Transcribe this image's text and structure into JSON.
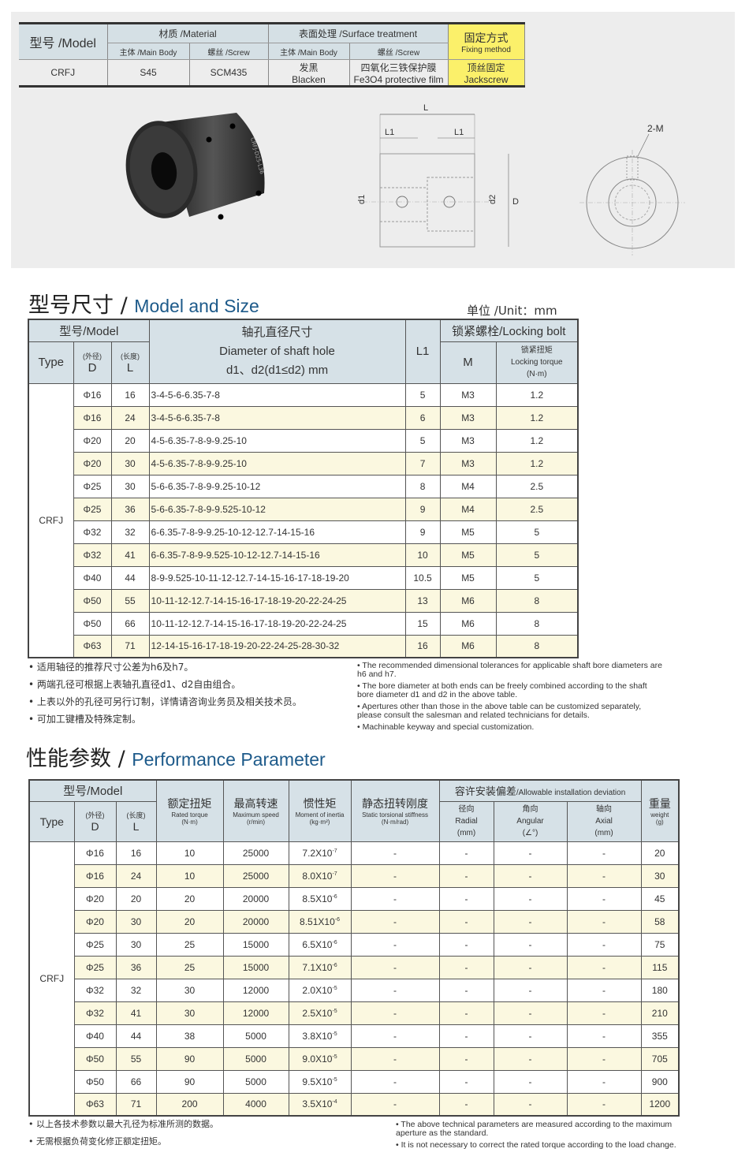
{
  "spec": {
    "model_h": "型号 /Model",
    "material_h": "材质 /Material",
    "surface_h": "表面处理 /Surface treatment",
    "fixing_h": "固定方式",
    "fixing_en": "Fixing method",
    "main_body": "主体 /Main Body",
    "screw": "螺丝 /Screw",
    "model": "CRFJ",
    "mat_body": "S45",
    "mat_screw": "SCM435",
    "surf_body_cn": "发黑",
    "surf_body_en": "Blacken",
    "surf_screw_cn": "四氧化三铁保护膜",
    "surf_screw_en": "Fe3O4 protective film",
    "fix_cn": "顶丝固定",
    "fix_en": "Jackscrew"
  },
  "drawing": {
    "L": "L",
    "L1a": "L1",
    "L1b": "L1",
    "d1": "d1",
    "d2": "d2",
    "D": "D",
    "M": "2-M",
    "engraving": "CRFJ-D25-L36"
  },
  "size": {
    "title_cn": "型号尺寸 /",
    "title_en": "Model and Size",
    "unit": "单位 /Unit：mm",
    "h_model": "型号/Model",
    "h_type": "Type",
    "h_d_cn": "(外径)",
    "h_d": "D",
    "h_l_cn": "(长度)",
    "h_l": "L",
    "h_shaft_cn": "轴孔直径尺寸",
    "h_shaft_en": "Diameter of shaft hole",
    "h_shaft_sub": "d1、d2(d1≤d2) mm",
    "h_l1": "L1",
    "h_bolt": "锁紧螺栓/Locking bolt",
    "h_m": "M",
    "h_torque_cn": "锁紧扭矩",
    "h_torque_en": "Locking torque",
    "h_torque_unit": "(N·m)",
    "type": "CRFJ",
    "rows": [
      [
        "Φ16",
        "16",
        "3-4-5-6-6.35-7-8",
        "5",
        "M3",
        "1.2"
      ],
      [
        "Φ16",
        "24",
        "3-4-5-6-6.35-7-8",
        "6",
        "M3",
        "1.2"
      ],
      [
        "Φ20",
        "20",
        "4-5-6.35-7-8-9-9.25-10",
        "5",
        "M3",
        "1.2"
      ],
      [
        "Φ20",
        "30",
        "4-5-6.35-7-8-9-9.25-10",
        "7",
        "M3",
        "1.2"
      ],
      [
        "Φ25",
        "30",
        "5-6-6.35-7-8-9-9.25-10-12",
        "8",
        "M4",
        "2.5"
      ],
      [
        "Φ25",
        "36",
        "5-6-6.35-7-8-9-9.525-10-12",
        "9",
        "M4",
        "2.5"
      ],
      [
        "Φ32",
        "32",
        "6-6.35-7-8-9-9.25-10-12-12.7-14-15-16",
        "9",
        "M5",
        "5"
      ],
      [
        "Φ32",
        "41",
        "6-6.35-7-8-9-9.525-10-12-12.7-14-15-16",
        "10",
        "M5",
        "5"
      ],
      [
        "Φ40",
        "44",
        "8-9-9.525-10-11-12-12.7-14-15-16-17-18-19-20",
        "10.5",
        "M5",
        "5"
      ],
      [
        "Φ50",
        "55",
        "10-11-12-12.7-14-15-16-17-18-19-20-22-24-25",
        "13",
        "M6",
        "8"
      ],
      [
        "Φ50",
        "66",
        "10-11-12-12.7-14-15-16-17-18-19-20-22-24-25",
        "15",
        "M6",
        "8"
      ],
      [
        "Φ63",
        "71",
        "12-14-15-16-17-18-19-20-22-24-25-28-30-32",
        "16",
        "M6",
        "8"
      ]
    ],
    "notes_cn": [
      "适用轴径的推荐尺寸公差为h6及h7。",
      "两端孔径可根据上表轴孔直径d1、d2自由组合。",
      "上表以外的孔径可另行订制，详情请咨询业务员及相关技术员。",
      "可加工键槽及特殊定制。"
    ],
    "notes_en": [
      "The recommended dimensional tolerances for applicable shaft bore diameters are h6 and h7.",
      "The bore diameter at both ends can be freely combined according to the shaft bore diameter d1 and d2 in the above table.",
      "Apertures other than those in the above table can be customized separately, please consult the salesman and related technicians for details.",
      "Machinable keyway and special customization."
    ]
  },
  "perf": {
    "title_cn": "性能参数 /",
    "title_en": "Performance Parameter",
    "h_model": "型号/Model",
    "h_type": "Type",
    "h_d_cn": "(外径)",
    "h_d": "D",
    "h_l_cn": "(长度)",
    "h_l": "L",
    "h_torque_cn": "额定扭矩",
    "h_torque_en": "Rated torque",
    "h_torque_u": "(N·m)",
    "h_speed_cn": "最高转速",
    "h_speed_en": "Maximum speed",
    "h_speed_u": "(r/min)",
    "h_inertia_cn": "惯性矩",
    "h_inertia_en": "Moment of inertia",
    "h_inertia_u": "(kg·m²)",
    "h_stiff_cn": "静态扭转刚度",
    "h_stiff_en": "Static torsional stiffness",
    "h_stiff_u": "(N·m/rad)",
    "h_dev_cn": "容许安装偏差",
    "h_dev_en": "/Allowable installation deviation",
    "h_radial_cn": "径向",
    "h_radial_en": "Radial",
    "h_radial_u": "(mm)",
    "h_angular_cn": "角向",
    "h_angular_en": "Angular",
    "h_angular_u": "(∠°)",
    "h_axial_cn": "轴向",
    "h_axial_en": "Axial",
    "h_axial_u": "(mm)",
    "h_weight_cn": "重量",
    "h_weight_en": "weight",
    "h_weight_u": "(g)",
    "type": "CRFJ",
    "rows": [
      [
        "Φ16",
        "16",
        "10",
        "25000",
        "7.2X10",
        "-7",
        "-",
        "-",
        "-",
        "-",
        "20"
      ],
      [
        "Φ16",
        "24",
        "10",
        "25000",
        "8.0X10",
        "-7",
        "-",
        "-",
        "-",
        "-",
        "30"
      ],
      [
        "Φ20",
        "20",
        "20",
        "20000",
        "8.5X10",
        "-6",
        "-",
        "-",
        "-",
        "-",
        "45"
      ],
      [
        "Φ20",
        "30",
        "20",
        "20000",
        "8.51X10",
        "-6",
        "-",
        "-",
        "-",
        "-",
        "58"
      ],
      [
        "Φ25",
        "30",
        "25",
        "15000",
        "6.5X10",
        "-6",
        "-",
        "-",
        "-",
        "-",
        "75"
      ],
      [
        "Φ25",
        "36",
        "25",
        "15000",
        "7.1X10",
        "-6",
        "-",
        "-",
        "-",
        "-",
        "115"
      ],
      [
        "Φ32",
        "32",
        "30",
        "12000",
        "2.0X10",
        "-5",
        "-",
        "-",
        "-",
        "-",
        "180"
      ],
      [
        "Φ32",
        "41",
        "30",
        "12000",
        "2.5X10",
        "-5",
        "-",
        "-",
        "-",
        "-",
        "210"
      ],
      [
        "Φ40",
        "44",
        "38",
        "5000",
        "3.8X10",
        "-5",
        "-",
        "-",
        "-",
        "-",
        "355"
      ],
      [
        "Φ50",
        "55",
        "90",
        "5000",
        "9.0X10",
        "-5",
        "-",
        "-",
        "-",
        "-",
        "705"
      ],
      [
        "Φ50",
        "66",
        "90",
        "5000",
        "9.5X10",
        "-5",
        "-",
        "-",
        "-",
        "-",
        "900"
      ],
      [
        "Φ63",
        "71",
        "200",
        "4000",
        "3.5X10",
        "-4",
        "-",
        "-",
        "-",
        "-",
        "1200"
      ]
    ],
    "notes_cn": [
      "以上各技术参数以最大孔径为标准所测的数据。",
      "无需根据负荷变化修正额定扭矩。"
    ],
    "notes_en": [
      "The above technical parameters are measured according to the maximum aperture as the standard.",
      "It is not necessary to correct the rated torque according to the load change."
    ]
  }
}
